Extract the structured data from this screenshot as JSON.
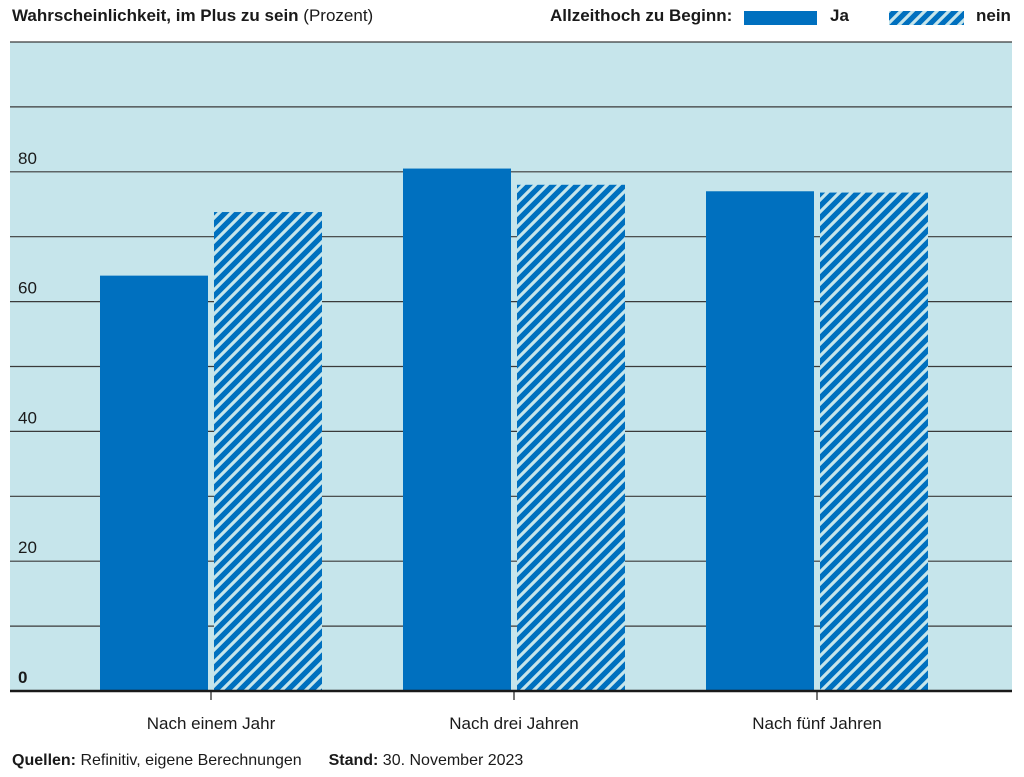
{
  "header": {
    "title": "Wahrscheinlichkeit, im Plus zu sein",
    "unit": "(Prozent)",
    "legend_title": "Allzeithoch zu Beginn:"
  },
  "footer": {
    "sources_label": "Quellen:",
    "sources_value": "Refinitiv, eigene Berechnungen",
    "date_label": "Stand:",
    "date_value": "30. November 2023"
  },
  "colors": {
    "bar": "#0070bf",
    "plot_bg": "#c6e5eb",
    "grid": "#3a3a3a",
    "hatch_gap": "#c6e5eb"
  },
  "chart_data": {
    "type": "bar",
    "title": "Wahrscheinlichkeit, im Plus zu sein (Prozent)",
    "xlabel": "",
    "ylabel": "Prozent",
    "categories": [
      "Nach einem Jahr",
      "Nach drei Jahren",
      "Nach fünf Jahren"
    ],
    "series": [
      {
        "name": "Ja",
        "pattern": "solid",
        "values": [
          64,
          80.5,
          77
        ]
      },
      {
        "name": "nein",
        "pattern": "hatched",
        "values": [
          73.8,
          78,
          76.8
        ]
      }
    ],
    "ylim": [
      0,
      100
    ],
    "yticks": [
      0,
      10,
      20,
      30,
      40,
      50,
      60,
      70,
      80,
      90,
      100
    ],
    "ytick_labels": [
      "0",
      "",
      "20",
      "",
      "40",
      "",
      "60",
      "",
      "80",
      "",
      ""
    ],
    "grid": true,
    "legend_position": "top-right"
  }
}
